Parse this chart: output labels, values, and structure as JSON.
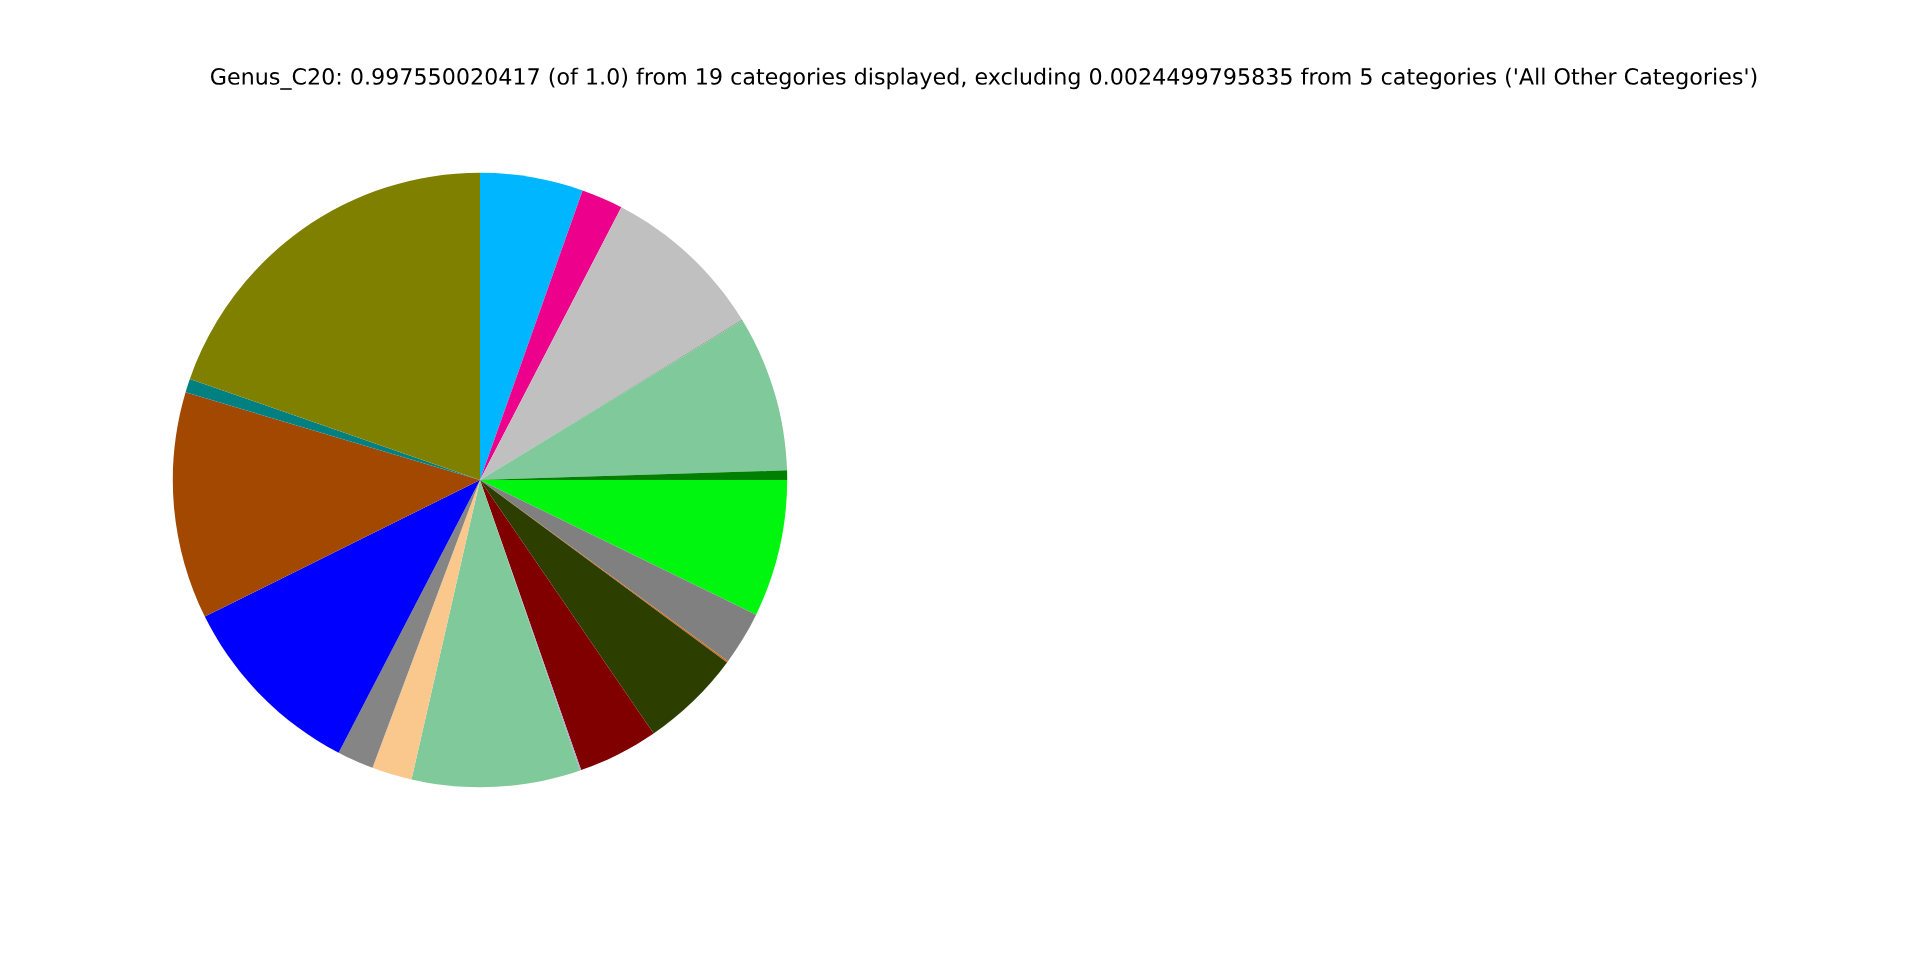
{
  "chart_data": {
    "type": "pie",
    "title": "Genus_C20: 0.997550020417 (of 1.0) from 19 categories displayed, excluding 0.0024499795835 from 5 categories ('All Other Categories')",
    "categories": [
      null,
      null,
      null,
      null,
      null,
      null,
      null,
      null,
      null,
      null,
      null,
      null,
      null,
      null,
      null,
      null,
      null,
      null,
      null
    ],
    "values": [
      5.42,
      2.19,
      8.64,
      0.06,
      8.19,
      0.5,
      7.22,
      2.83,
      0.08,
      5.31,
      4.22,
      0.06,
      8.86,
      2.11,
      1.92,
      10.06,
      11.94,
      0.72,
      19.67
    ],
    "colors": [
      "#00b7ff",
      "#ec008c",
      "#c0c0c0",
      "#8fa08f",
      "#80c99b",
      "#008000",
      "#00f50f",
      "#808080",
      "#d2691e",
      "#2d3f00",
      "#800000",
      "#b0a0d0",
      "#80c99b",
      "#fac88c",
      "#858585",
      "#0000ff",
      "#a24800",
      "#008080",
      "#7f7f00"
    ]
  }
}
